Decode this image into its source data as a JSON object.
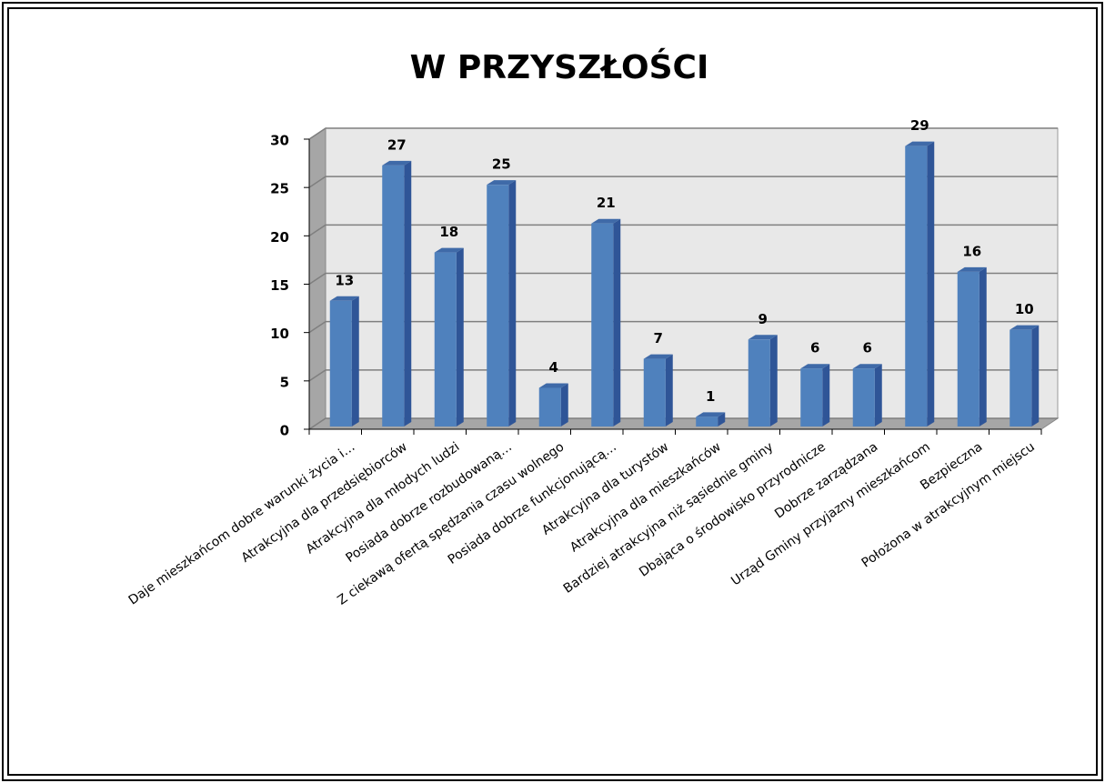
{
  "chart_data": {
    "type": "bar",
    "title": "W PRZYSZŁOŚCI",
    "categories": [
      "Daje mieszkańcom dobre warunki życia i…",
      "Atrakcyjna dla przedsiębiorców",
      "Atrakcyjna dla młodych ludzi",
      "Posiada dobrze rozbudowaną…",
      "Z ciekawą ofertą spędzania czasu wolnego",
      "Posiada dobrze funkcjonującą…",
      "Atrakcyjna dla turystów",
      "Atrakcyjna dla mieszkańców",
      "Bardziej atrakcyjna niż sąsiednie gminy",
      "Dbająca o środowisko przyrodnicze",
      "Dobrze zarządzana",
      "Urząd Gminy przyjazny mieszkańcom",
      "Bezpieczna",
      "Położona w atrakcyjnym miejscu"
    ],
    "values": [
      13,
      27,
      18,
      25,
      4,
      21,
      7,
      1,
      9,
      6,
      6,
      29,
      16,
      10
    ],
    "color": "#4f81bd",
    "ylim": [
      0,
      30
    ],
    "yticks": [
      0,
      5,
      10,
      15,
      20,
      25,
      30
    ],
    "grid": true
  }
}
